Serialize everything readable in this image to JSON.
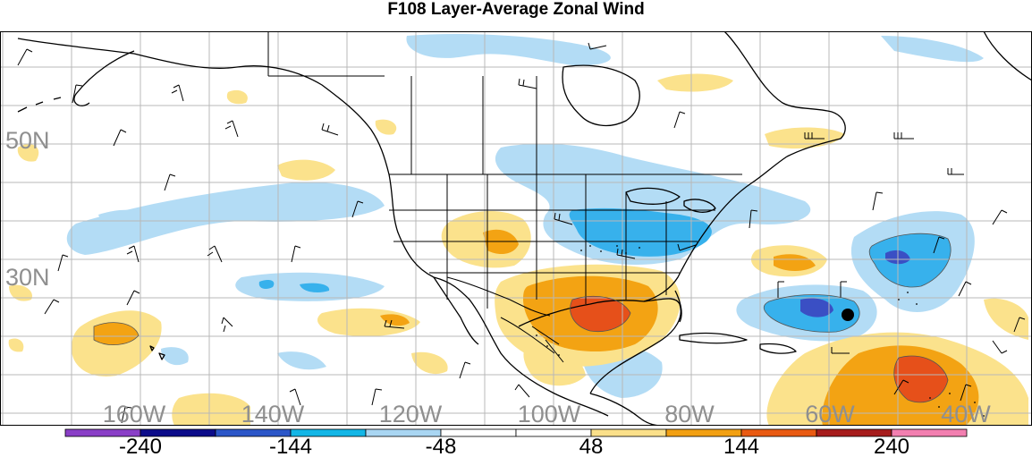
{
  "title": "F108 Layer-Average Zonal Wind",
  "latitude_labels": [
    "50N",
    "30N"
  ],
  "longitude_labels": [
    "160W",
    "140W",
    "120W",
    "100W",
    "80W",
    "60W",
    "40W"
  ],
  "colorbar": {
    "tick_labels": [
      "-240",
      "-144",
      "-48",
      "48",
      "144",
      "240"
    ],
    "colors": [
      "#8a3fc7",
      "#0c0c8a",
      "#2b56c8",
      "#13b6e6",
      "#a9d6f2",
      "#ffffff",
      "#ffffff",
      "#fbe08a",
      "#f2a012",
      "#e95a12",
      "#a61c1c",
      "#f27fb0"
    ]
  },
  "palette": {
    "light_blue": "#b3dcf5",
    "mid_blue": "#37b1ec",
    "deep_blue": "#3a4fc4",
    "light_yellow": "#fbe28c",
    "orange": "#f3a313",
    "red_orange": "#e6501a",
    "coast": "#000000",
    "grid": "#b8b8b8",
    "storm_marker": "#000000"
  }
}
